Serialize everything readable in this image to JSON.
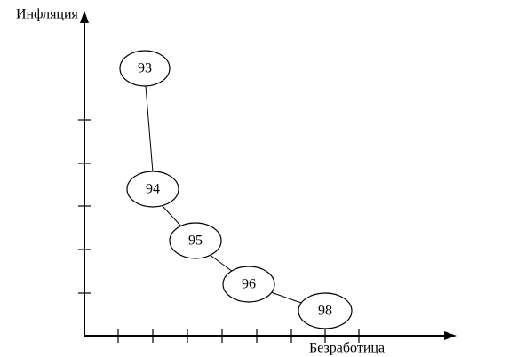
{
  "axes": {
    "y_label": "Инфляция",
    "x_label": "Безработица"
  },
  "nodes": [
    {
      "label": "93"
    },
    {
      "label": "94"
    },
    {
      "label": "95"
    },
    {
      "label": "96"
    },
    {
      "label": "98"
    }
  ]
}
